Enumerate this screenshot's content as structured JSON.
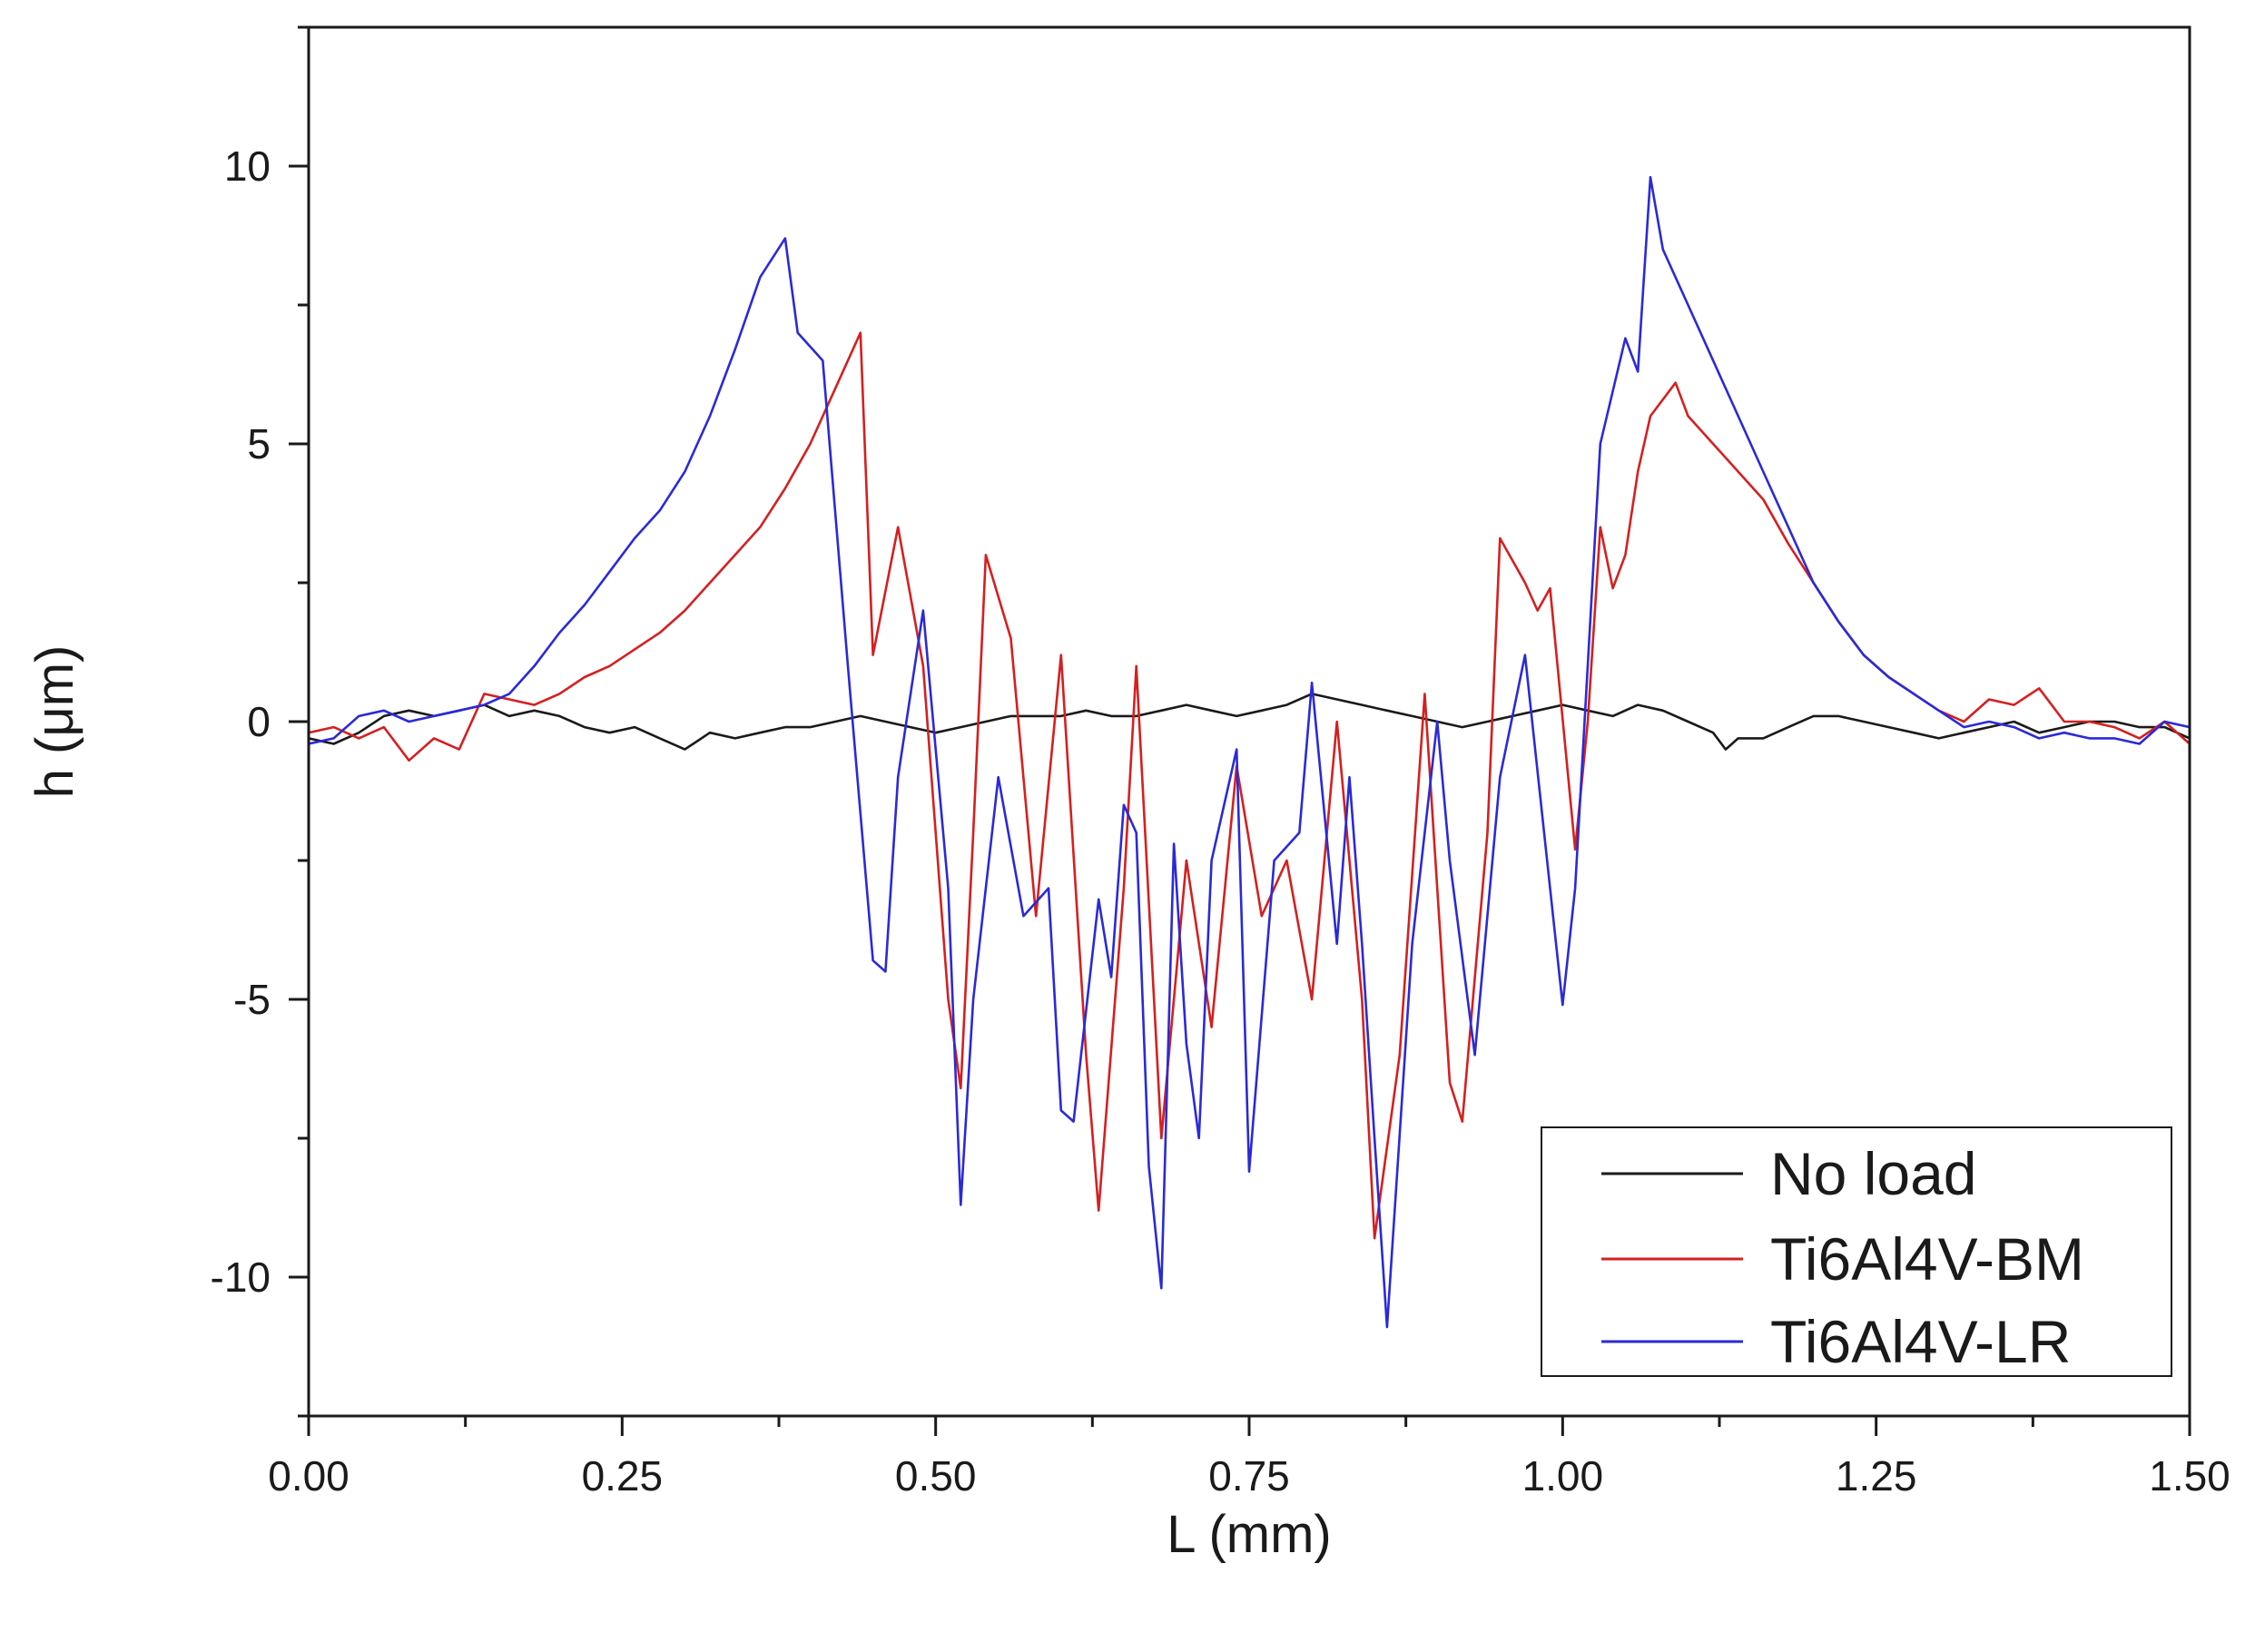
{
  "chart_data": {
    "type": "line",
    "title": "",
    "xlabel": "L (mm)",
    "ylabel": "h (μm)",
    "xlim": [
      0,
      1.5
    ],
    "ylim": [
      -12.5,
      12.5
    ],
    "xticks": [
      0,
      0.25,
      0.5,
      0.75,
      1.0,
      1.25,
      1.5
    ],
    "xtick_labels": [
      "0.00",
      "0.25",
      "0.50",
      "0.75",
      "1.00",
      "1.25",
      "1.50"
    ],
    "yticks": [
      -10,
      -5,
      0,
      5,
      10
    ],
    "ytick_labels": [
      "-10",
      "-5",
      "0",
      "5",
      "10"
    ],
    "grid": false,
    "legend_position": "bottom-right",
    "series": [
      {
        "name": "No load",
        "color": "#1a1a1a",
        "points": [
          [
            0,
            -0.3
          ],
          [
            0.02,
            -0.4
          ],
          [
            0.04,
            -0.2
          ],
          [
            0.06,
            0.1
          ],
          [
            0.08,
            0.2
          ],
          [
            0.1,
            0.1
          ],
          [
            0.12,
            0.2
          ],
          [
            0.14,
            0.3
          ],
          [
            0.16,
            0.1
          ],
          [
            0.18,
            0.2
          ],
          [
            0.2,
            0.1
          ],
          [
            0.22,
            -0.1
          ],
          [
            0.24,
            -0.2
          ],
          [
            0.26,
            -0.1
          ],
          [
            0.28,
            -0.3
          ],
          [
            0.3,
            -0.5
          ],
          [
            0.32,
            -0.2
          ],
          [
            0.34,
            -0.3
          ],
          [
            0.36,
            -0.2
          ],
          [
            0.38,
            -0.1
          ],
          [
            0.4,
            -0.1
          ],
          [
            0.42,
            0.0
          ],
          [
            0.44,
            0.1
          ],
          [
            0.46,
            0.0
          ],
          [
            0.48,
            -0.1
          ],
          [
            0.5,
            -0.2
          ],
          [
            0.52,
            -0.1
          ],
          [
            0.54,
            0.0
          ],
          [
            0.56,
            0.1
          ],
          [
            0.58,
            0.1
          ],
          [
            0.6,
            0.1
          ],
          [
            0.62,
            0.2
          ],
          [
            0.64,
            0.1
          ],
          [
            0.66,
            0.1
          ],
          [
            0.68,
            0.2
          ],
          [
            0.7,
            0.3
          ],
          [
            0.72,
            0.2
          ],
          [
            0.74,
            0.1
          ],
          [
            0.76,
            0.2
          ],
          [
            0.78,
            0.3
          ],
          [
            0.8,
            0.5
          ],
          [
            0.82,
            0.4
          ],
          [
            0.84,
            0.3
          ],
          [
            0.86,
            0.2
          ],
          [
            0.88,
            0.1
          ],
          [
            0.9,
            0.0
          ],
          [
            0.92,
            -0.1
          ],
          [
            0.94,
            0.0
          ],
          [
            0.96,
            0.1
          ],
          [
            0.98,
            0.2
          ],
          [
            1.0,
            0.3
          ],
          [
            1.02,
            0.2
          ],
          [
            1.04,
            0.1
          ],
          [
            1.06,
            0.3
          ],
          [
            1.08,
            0.2
          ],
          [
            1.1,
            0.0
          ],
          [
            1.12,
            -0.2
          ],
          [
            1.13,
            -0.5
          ],
          [
            1.14,
            -0.3
          ],
          [
            1.16,
            -0.3
          ],
          [
            1.18,
            -0.1
          ],
          [
            1.2,
            0.1
          ],
          [
            1.22,
            0.1
          ],
          [
            1.24,
            0.0
          ],
          [
            1.26,
            -0.1
          ],
          [
            1.28,
            -0.2
          ],
          [
            1.3,
            -0.3
          ],
          [
            1.32,
            -0.2
          ],
          [
            1.34,
            -0.1
          ],
          [
            1.36,
            0.0
          ],
          [
            1.38,
            -0.2
          ],
          [
            1.4,
            -0.1
          ],
          [
            1.42,
            0.0
          ],
          [
            1.44,
            0.0
          ],
          [
            1.46,
            -0.1
          ],
          [
            1.48,
            -0.1
          ],
          [
            1.5,
            -0.3
          ]
        ]
      },
      {
        "name": "Ti6Al4V-BM",
        "color": "#d42020",
        "points": [
          [
            0,
            -0.2
          ],
          [
            0.02,
            -0.1
          ],
          [
            0.04,
            -0.3
          ],
          [
            0.06,
            -0.1
          ],
          [
            0.08,
            -0.7
          ],
          [
            0.1,
            -0.3
          ],
          [
            0.12,
            -0.5
          ],
          [
            0.14,
            0.5
          ],
          [
            0.16,
            0.4
          ],
          [
            0.18,
            0.3
          ],
          [
            0.2,
            0.5
          ],
          [
            0.22,
            0.8
          ],
          [
            0.24,
            1.0
          ],
          [
            0.26,
            1.3
          ],
          [
            0.28,
            1.6
          ],
          [
            0.3,
            2.0
          ],
          [
            0.32,
            2.5
          ],
          [
            0.34,
            3.0
          ],
          [
            0.36,
            3.5
          ],
          [
            0.38,
            4.2
          ],
          [
            0.4,
            5.0
          ],
          [
            0.42,
            6.0
          ],
          [
            0.44,
            7.0
          ],
          [
            0.45,
            1.2
          ],
          [
            0.47,
            3.5
          ],
          [
            0.49,
            1.0
          ],
          [
            0.51,
            -5.0
          ],
          [
            0.52,
            -6.6
          ],
          [
            0.53,
            -2.0
          ],
          [
            0.54,
            3.0
          ],
          [
            0.56,
            1.5
          ],
          [
            0.58,
            -3.5
          ],
          [
            0.6,
            1.2
          ],
          [
            0.62,
            -6.0
          ],
          [
            0.63,
            -8.8
          ],
          [
            0.65,
            -3.0
          ],
          [
            0.66,
            1.0
          ],
          [
            0.68,
            -7.5
          ],
          [
            0.7,
            -2.5
          ],
          [
            0.72,
            -5.5
          ],
          [
            0.74,
            -0.8
          ],
          [
            0.76,
            -3.5
          ],
          [
            0.78,
            -2.5
          ],
          [
            0.8,
            -5.0
          ],
          [
            0.82,
            0.0
          ],
          [
            0.84,
            -5.0
          ],
          [
            0.85,
            -9.3
          ],
          [
            0.87,
            -6.0
          ],
          [
            0.89,
            0.5
          ],
          [
            0.91,
            -6.5
          ],
          [
            0.92,
            -7.2
          ],
          [
            0.94,
            -2.0
          ],
          [
            0.95,
            3.3
          ],
          [
            0.97,
            2.5
          ],
          [
            0.98,
            2.0
          ],
          [
            0.99,
            2.4
          ],
          [
            1.01,
            -2.3
          ],
          [
            1.02,
            0.0
          ],
          [
            1.03,
            3.5
          ],
          [
            1.04,
            2.4
          ],
          [
            1.05,
            3.0
          ],
          [
            1.06,
            4.5
          ],
          [
            1.07,
            5.5
          ],
          [
            1.09,
            6.1
          ],
          [
            1.1,
            5.5
          ],
          [
            1.12,
            5.0
          ],
          [
            1.14,
            4.5
          ],
          [
            1.16,
            4.0
          ],
          [
            1.18,
            3.2
          ],
          [
            1.2,
            2.5
          ],
          [
            1.22,
            1.8
          ],
          [
            1.24,
            1.2
          ],
          [
            1.26,
            0.8
          ],
          [
            1.28,
            0.5
          ],
          [
            1.3,
            0.2
          ],
          [
            1.32,
            0.0
          ],
          [
            1.34,
            0.4
          ],
          [
            1.36,
            0.3
          ],
          [
            1.38,
            0.6
          ],
          [
            1.4,
            0.0
          ],
          [
            1.42,
            0.0
          ],
          [
            1.44,
            -0.1
          ],
          [
            1.46,
            -0.3
          ],
          [
            1.48,
            0.0
          ],
          [
            1.5,
            -0.4
          ]
        ]
      },
      {
        "name": "Ti6Al4V-LR",
        "color": "#2a2ad8",
        "points": [
          [
            0,
            -0.4
          ],
          [
            0.02,
            -0.3
          ],
          [
            0.04,
            0.1
          ],
          [
            0.06,
            0.2
          ],
          [
            0.08,
            0.0
          ],
          [
            0.1,
            0.1
          ],
          [
            0.12,
            0.2
          ],
          [
            0.14,
            0.3
          ],
          [
            0.16,
            0.5
          ],
          [
            0.18,
            1.0
          ],
          [
            0.2,
            1.6
          ],
          [
            0.22,
            2.1
          ],
          [
            0.24,
            2.7
          ],
          [
            0.26,
            3.3
          ],
          [
            0.28,
            3.8
          ],
          [
            0.3,
            4.5
          ],
          [
            0.32,
            5.5
          ],
          [
            0.34,
            6.7
          ],
          [
            0.36,
            8.0
          ],
          [
            0.38,
            8.7
          ],
          [
            0.39,
            7.0
          ],
          [
            0.41,
            6.5
          ],
          [
            0.43,
            1.0
          ],
          [
            0.45,
            -4.3
          ],
          [
            0.46,
            -4.5
          ],
          [
            0.47,
            -1.0
          ],
          [
            0.49,
            2.0
          ],
          [
            0.51,
            -3.0
          ],
          [
            0.52,
            -8.7
          ],
          [
            0.53,
            -5.0
          ],
          [
            0.55,
            -1.0
          ],
          [
            0.57,
            -3.5
          ],
          [
            0.59,
            -3.0
          ],
          [
            0.6,
            -7.0
          ],
          [
            0.61,
            -7.2
          ],
          [
            0.63,
            -3.2
          ],
          [
            0.64,
            -4.6
          ],
          [
            0.65,
            -1.5
          ],
          [
            0.66,
            -2.0
          ],
          [
            0.67,
            -8.0
          ],
          [
            0.68,
            -10.2
          ],
          [
            0.69,
            -2.2
          ],
          [
            0.7,
            -5.8
          ],
          [
            0.71,
            -7.5
          ],
          [
            0.72,
            -2.5
          ],
          [
            0.74,
            -0.5
          ],
          [
            0.75,
            -8.1
          ],
          [
            0.77,
            -2.5
          ],
          [
            0.79,
            -2.0
          ],
          [
            0.8,
            0.7
          ],
          [
            0.82,
            -4.0
          ],
          [
            0.83,
            -1.0
          ],
          [
            0.84,
            -4.0
          ],
          [
            0.85,
            -7.5
          ],
          [
            0.86,
            -10.9
          ],
          [
            0.88,
            -4.0
          ],
          [
            0.9,
            0.0
          ],
          [
            0.91,
            -2.5
          ],
          [
            0.93,
            -6.0
          ],
          [
            0.95,
            -1.0
          ],
          [
            0.97,
            1.2
          ],
          [
            0.99,
            -3.0
          ],
          [
            1.0,
            -5.1
          ],
          [
            1.01,
            -3.0
          ],
          [
            1.03,
            5.0
          ],
          [
            1.05,
            6.9
          ],
          [
            1.06,
            6.3
          ],
          [
            1.07,
            9.8
          ],
          [
            1.08,
            8.5
          ],
          [
            1.1,
            7.5
          ],
          [
            1.12,
            6.5
          ],
          [
            1.14,
            5.5
          ],
          [
            1.16,
            4.5
          ],
          [
            1.18,
            3.5
          ],
          [
            1.2,
            2.5
          ],
          [
            1.22,
            1.8
          ],
          [
            1.24,
            1.2
          ],
          [
            1.26,
            0.8
          ],
          [
            1.28,
            0.5
          ],
          [
            1.3,
            0.2
          ],
          [
            1.32,
            -0.1
          ],
          [
            1.34,
            0.0
          ],
          [
            1.36,
            -0.1
          ],
          [
            1.38,
            -0.3
          ],
          [
            1.4,
            -0.2
          ],
          [
            1.42,
            -0.3
          ],
          [
            1.44,
            -0.3
          ],
          [
            1.46,
            -0.4
          ],
          [
            1.48,
            0.0
          ],
          [
            1.5,
            -0.1
          ]
        ]
      }
    ]
  }
}
